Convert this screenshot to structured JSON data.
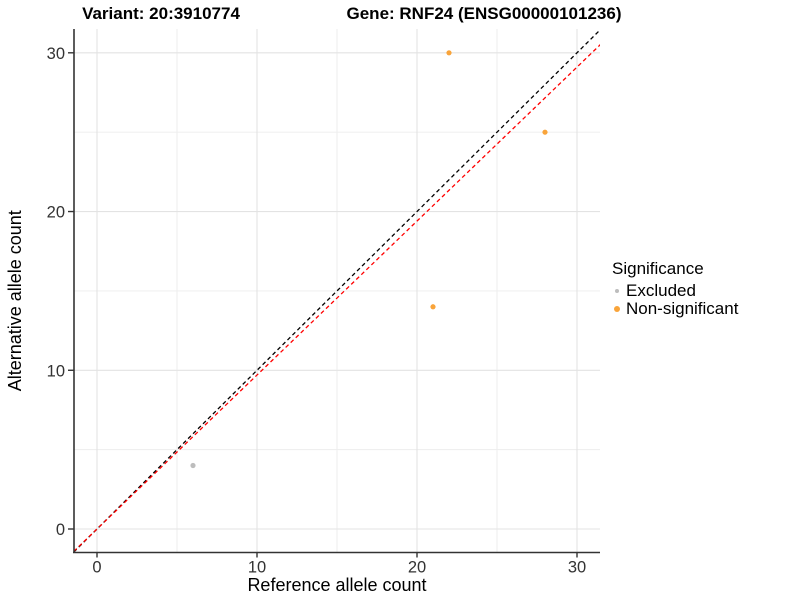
{
  "header": {
    "variant_title": "Variant: 20:3910774",
    "gene_title": "Gene: RNF24 (ENSG00000101236)"
  },
  "chart_data": {
    "type": "scatter",
    "title": "Variant: 20:3910774   Gene: RNF24 (ENSG00000101236)",
    "xlabel": "Reference allele count",
    "ylabel": "Alternative allele count",
    "xlim": [
      -1.45,
      31.8
    ],
    "ylim": [
      -1.45,
      31.8
    ],
    "x_ticks": [
      0,
      10,
      20,
      30
    ],
    "y_ticks": [
      0,
      10,
      20,
      30
    ],
    "minor_ticks": [
      5,
      15,
      25
    ],
    "grid": "major and minor, light gray on white",
    "legend_position": "right",
    "series": [
      {
        "name": "Excluded",
        "color": "#BDBDBD",
        "point_radius": 2.6,
        "points": [
          {
            "x": 6,
            "y": 4
          }
        ]
      },
      {
        "name": "Non-significant",
        "color": "#F9A43A",
        "point_radius": 2.6,
        "points": [
          {
            "x": 21,
            "y": 14
          },
          {
            "x": 22,
            "y": 30
          },
          {
            "x": 28,
            "y": 25
          }
        ]
      }
    ],
    "reference_lines": [
      {
        "name": "identity",
        "color": "#000000",
        "style": "dashed",
        "slope": 1.0,
        "intercept": 0
      },
      {
        "name": "expected-ratio",
        "color": "#FF0000",
        "style": "dashed",
        "slope": 0.97,
        "intercept": 0
      }
    ]
  },
  "legend": {
    "title": "Significance",
    "items": [
      {
        "label": "Excluded",
        "color": "#BDBDBD"
      },
      {
        "label": "Non-significant",
        "color": "#F9A43A"
      }
    ]
  },
  "style": {
    "grid_major_color": "#E3E3E3",
    "grid_minor_color": "#EDEDED",
    "axis_line_color": "#333333",
    "tick_label_color": "#333333"
  }
}
